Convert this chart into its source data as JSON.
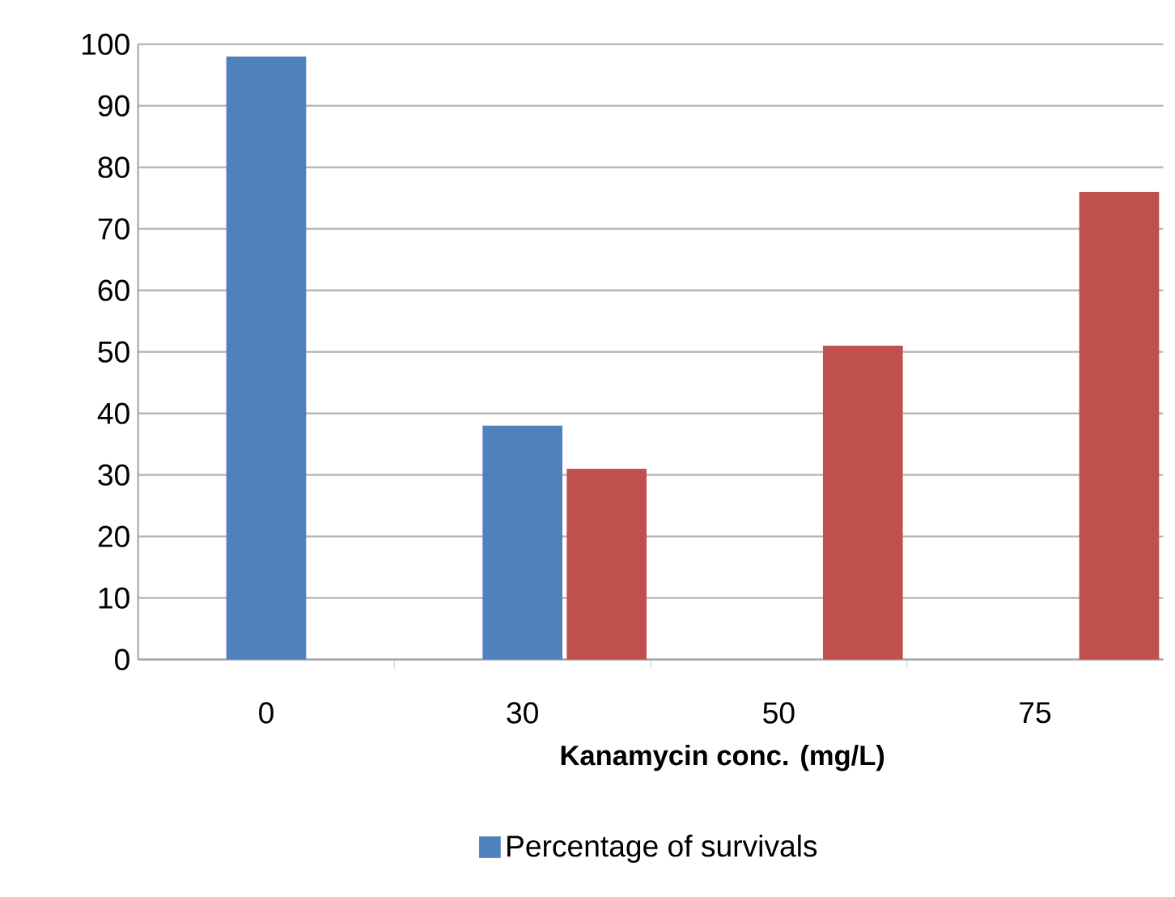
{
  "chart_data": {
    "type": "bar",
    "xlabel": "Kanamycin conc. (mg/L)",
    "categories": [
      "0",
      "30",
      "50",
      "75"
    ],
    "series": [
      {
        "name": "Percentage of survivals",
        "color": "#4f81bd",
        "values": [
          98,
          38,
          0,
          0
        ]
      },
      {
        "color": "#c0504d",
        "values": [
          0,
          31,
          51,
          76
        ]
      }
    ],
    "ylim": [
      0,
      100
    ],
    "yticks": [
      0,
      10,
      20,
      30,
      40,
      50,
      60,
      70,
      80,
      90,
      100
    ],
    "grid": "y",
    "legend": "bottom"
  }
}
